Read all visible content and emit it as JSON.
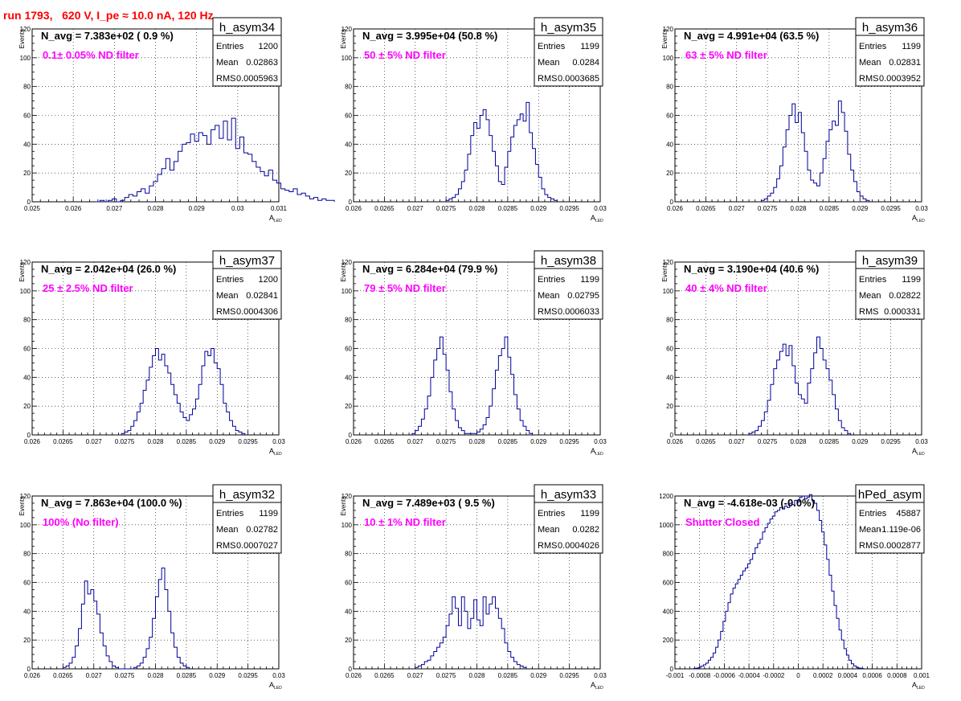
{
  "run_title": "run 1793,   620 V, I_pe ≈ 10.0 nA, 120 Hz",
  "stats_labels": {
    "entries": "Entries",
    "mean": "Mean",
    "rms": "RMS"
  },
  "colors": {
    "histogram": "#000099",
    "filter_label": "#ff00ff",
    "run_title": "#ff0000",
    "grid": "#000000"
  },
  "chart_data": [
    {
      "type": "histogram",
      "name": "h_asym34",
      "navg": "N_avg = 7.383e+02 ( 0.9 %)",
      "filter": "0.1± 0.05% ND filter",
      "entries": "1200",
      "mean": "0.02863",
      "rms": "0.0005963",
      "xlabel": "A",
      "xlabel_sub": "LED",
      "ylabel": "Events",
      "xlim": [
        0.025,
        0.031
      ],
      "ylim": [
        0,
        120
      ],
      "xticks": [
        0.025,
        0.026,
        0.027,
        0.028,
        0.029,
        0.03,
        0.031
      ],
      "xtick_labels": [
        "0.025",
        "0.026",
        "0.027",
        "0.028",
        "0.029",
        "0.03",
        "0.031"
      ],
      "yticks": [
        0,
        20,
        40,
        60,
        80,
        100,
        120
      ],
      "ytick_labels": [
        "0",
        "20",
        "40",
        "60",
        "80",
        "100",
        "120"
      ],
      "bin_start": 0.02655,
      "bin_width": 0.0001,
      "counts": [
        0,
        1,
        0,
        1,
        2,
        0,
        1,
        3,
        5,
        4,
        7,
        9,
        6,
        11,
        14,
        19,
        23,
        30,
        22,
        28,
        35,
        40,
        41,
        47,
        42,
        48,
        46,
        40,
        50,
        53,
        44,
        56,
        43,
        58,
        37,
        45,
        34,
        33,
        28,
        24,
        21,
        18,
        22,
        15,
        13,
        9,
        8,
        7,
        9,
        5,
        6,
        4,
        2,
        3,
        1,
        2,
        1,
        1
      ]
    },
    {
      "type": "histogram",
      "name": "h_asym35",
      "navg": "N_avg = 3.995e+04 (50.8 %)",
      "filter": "50 ± 5% ND filter",
      "entries": "1199",
      "mean": "0.0284",
      "rms": "0.0003685",
      "xlabel": "A",
      "xlabel_sub": "LED",
      "ylabel": "Events",
      "xlim": [
        0.026,
        0.03
      ],
      "ylim": [
        0,
        120
      ],
      "xticks": [
        0.026,
        0.0265,
        0.027,
        0.0275,
        0.028,
        0.0285,
        0.029,
        0.0295,
        0.03
      ],
      "xtick_labels": [
        "0.026",
        "0.0265",
        "0.027",
        "0.0275",
        "0.028",
        "0.0285",
        "0.029",
        "0.0295",
        "0.03"
      ],
      "yticks": [
        0,
        20,
        40,
        60,
        80,
        100,
        120
      ],
      "ytick_labels": [
        "0",
        "20",
        "40",
        "60",
        "80",
        "100",
        "120"
      ],
      "bin_start": 0.0275,
      "bin_width": 5e-05,
      "counts": [
        1,
        2,
        3,
        5,
        9,
        14,
        22,
        33,
        46,
        55,
        51,
        60,
        64,
        57,
        46,
        35,
        25,
        14,
        12,
        24,
        35,
        45,
        53,
        57,
        61,
        56,
        69,
        48,
        37,
        26,
        17,
        9,
        5,
        3,
        2,
        1
      ]
    },
    {
      "type": "histogram",
      "name": "h_asym36",
      "navg": "N_avg = 4.991e+04 (63.5 %)",
      "filter": "63 ± 5% ND filter",
      "entries": "1199",
      "mean": "0.02831",
      "rms": "0.0003952",
      "xlabel": "A",
      "xlabel_sub": "LED",
      "ylabel": "Events",
      "xlim": [
        0.026,
        0.03
      ],
      "ylim": [
        0,
        120
      ],
      "xticks": [
        0.026,
        0.0265,
        0.027,
        0.0275,
        0.028,
        0.0285,
        0.029,
        0.0295,
        0.03
      ],
      "xtick_labels": [
        "0.026",
        "0.0265",
        "0.027",
        "0.0275",
        "0.028",
        "0.0285",
        "0.029",
        "0.0295",
        "0.03"
      ],
      "yticks": [
        0,
        20,
        40,
        60,
        80,
        100,
        120
      ],
      "ytick_labels": [
        "0",
        "20",
        "40",
        "60",
        "80",
        "100",
        "120"
      ],
      "bin_start": 0.0274,
      "bin_width": 5e-05,
      "counts": [
        1,
        2,
        4,
        6,
        10,
        16,
        25,
        38,
        50,
        60,
        68,
        55,
        62,
        48,
        35,
        22,
        15,
        13,
        11,
        20,
        30,
        42,
        50,
        56,
        53,
        70,
        62,
        49,
        33,
        22,
        14,
        7,
        4,
        2,
        1
      ]
    },
    {
      "type": "histogram",
      "name": "h_asym37",
      "navg": "N_avg = 2.042e+04 (26.0 %)",
      "filter": "25 ± 2.5% ND filter",
      "entries": "1200",
      "mean": "0.02841",
      "rms": "0.0004306",
      "xlabel": "A",
      "xlabel_sub": "LED",
      "ylabel": "Events",
      "xlim": [
        0.026,
        0.03
      ],
      "ylim": [
        0,
        120
      ],
      "xticks": [
        0.026,
        0.0265,
        0.027,
        0.0275,
        0.028,
        0.0285,
        0.029,
        0.0295,
        0.03
      ],
      "xtick_labels": [
        "0.026",
        "0.0265",
        "0.027",
        "0.0275",
        "0.028",
        "0.0285",
        "0.029",
        "0.0295",
        "0.03"
      ],
      "yticks": [
        0,
        20,
        40,
        60,
        80,
        100,
        120
      ],
      "ytick_labels": [
        "0",
        "20",
        "40",
        "60",
        "80",
        "100",
        "120"
      ],
      "bin_start": 0.02745,
      "bin_width": 5e-05,
      "counts": [
        1,
        2,
        3,
        6,
        10,
        16,
        22,
        31,
        38,
        47,
        55,
        60,
        52,
        56,
        48,
        43,
        35,
        28,
        22,
        16,
        12,
        10,
        14,
        18,
        25,
        35,
        48,
        58,
        55,
        60,
        50,
        46,
        35,
        22,
        16,
        10,
        6,
        3,
        2,
        1
      ]
    },
    {
      "type": "histogram",
      "name": "h_asym38",
      "navg": "N_avg = 6.284e+04 (79.9 %)",
      "filter": "79 ± 5% ND filter",
      "entries": "1199",
      "mean": "0.02795",
      "rms": "0.0006033",
      "xlabel": "A",
      "xlabel_sub": "LED",
      "ylabel": "Events",
      "xlim": [
        0.026,
        0.03
      ],
      "ylim": [
        0,
        120
      ],
      "xticks": [
        0.026,
        0.0265,
        0.027,
        0.0275,
        0.028,
        0.0285,
        0.029,
        0.0295,
        0.03
      ],
      "xtick_labels": [
        "0.026",
        "0.0265",
        "0.027",
        "0.0275",
        "0.028",
        "0.0285",
        "0.029",
        "0.0295",
        "0.03"
      ],
      "yticks": [
        0,
        20,
        40,
        60,
        80,
        100,
        120
      ],
      "ytick_labels": [
        "0",
        "20",
        "40",
        "60",
        "80",
        "100",
        "120"
      ],
      "bin_start": 0.02695,
      "bin_width": 5e-05,
      "counts": [
        1,
        3,
        6,
        11,
        18,
        27,
        40,
        52,
        60,
        68,
        56,
        45,
        30,
        18,
        10,
        5,
        3,
        1,
        1,
        1,
        1,
        2,
        4,
        7,
        12,
        20,
        32,
        45,
        55,
        60,
        68,
        54,
        42,
        28,
        18,
        10,
        6,
        3,
        1
      ]
    },
    {
      "type": "histogram",
      "name": "h_asym39",
      "navg": "N_avg = 3.190e+04 (40.6 %)",
      "filter": "40 ± 4% ND filter",
      "entries": "1199",
      "mean": "0.02822",
      "rms": "0.000331",
      "xlabel": "A",
      "xlabel_sub": "LED",
      "ylabel": "Events",
      "xlim": [
        0.026,
        0.03
      ],
      "ylim": [
        0,
        120
      ],
      "xticks": [
        0.026,
        0.0265,
        0.027,
        0.0275,
        0.028,
        0.0285,
        0.029,
        0.0295,
        0.03
      ],
      "xtick_labels": [
        "0.026",
        "0.0265",
        "0.027",
        "0.0275",
        "0.028",
        "0.0285",
        "0.029",
        "0.0295",
        "0.03"
      ],
      "yticks": [
        0,
        20,
        40,
        60,
        80,
        100,
        120
      ],
      "ytick_labels": [
        "0",
        "20",
        "40",
        "60",
        "80",
        "100",
        "120"
      ],
      "bin_start": 0.0272,
      "bin_width": 5e-05,
      "counts": [
        1,
        2,
        3,
        6,
        10,
        16,
        24,
        35,
        46,
        52,
        58,
        63,
        55,
        62,
        48,
        36,
        28,
        25,
        22,
        36,
        46,
        57,
        68,
        60,
        52,
        46,
        38,
        28,
        18,
        10,
        5,
        3,
        1
      ]
    },
    {
      "type": "histogram",
      "name": "h_asym32",
      "navg": "N_avg = 7.863e+04 (100.0 %)",
      "filter": "100% (No filter)",
      "entries": "1199",
      "mean": "0.02782",
      "rms": "0.0007027",
      "xlabel": "A",
      "xlabel_sub": "LED",
      "ylabel": "Events",
      "xlim": [
        0.026,
        0.03
      ],
      "ylim": [
        0,
        120
      ],
      "xticks": [
        0.026,
        0.0265,
        0.027,
        0.0275,
        0.028,
        0.0285,
        0.029,
        0.0295,
        0.03
      ],
      "xtick_labels": [
        "0.026",
        "0.0265",
        "0.027",
        "0.0275",
        "0.028",
        "0.0285",
        "0.029",
        "0.0295",
        "0.03"
      ],
      "yticks": [
        0,
        20,
        40,
        60,
        80,
        100,
        120
      ],
      "ytick_labels": [
        "0",
        "20",
        "40",
        "60",
        "80",
        "100",
        "120"
      ],
      "bin_start": 0.0265,
      "bin_width": 5e-05,
      "counts": [
        1,
        2,
        4,
        8,
        16,
        28,
        45,
        61,
        52,
        55,
        47,
        38,
        25,
        16,
        9,
        5,
        2,
        1,
        0,
        0,
        0,
        0,
        0,
        1,
        2,
        4,
        8,
        14,
        22,
        35,
        50,
        62,
        70,
        55,
        40,
        25,
        15,
        8,
        4,
        2,
        1
      ]
    },
    {
      "type": "histogram",
      "name": "h_asym33",
      "navg": "N_avg = 7.489e+03 ( 9.5 %)",
      "filter": "10 ± 1% ND filter",
      "entries": "1199",
      "mean": "0.0282",
      "rms": "0.0004026",
      "xlabel": "A",
      "xlabel_sub": "LED",
      "ylabel": "Events",
      "xlim": [
        0.026,
        0.03
      ],
      "ylim": [
        0,
        120
      ],
      "xticks": [
        0.026,
        0.0265,
        0.027,
        0.0275,
        0.028,
        0.0285,
        0.029,
        0.0295,
        0.03
      ],
      "xtick_labels": [
        "0.026",
        "0.0265",
        "0.027",
        "0.0275",
        "0.028",
        "0.0285",
        "0.029",
        "0.0295",
        "0.03"
      ],
      "yticks": [
        0,
        20,
        40,
        60,
        80,
        100,
        120
      ],
      "ytick_labels": [
        "0",
        "20",
        "40",
        "60",
        "80",
        "100",
        "120"
      ],
      "bin_start": 0.027,
      "bin_width": 5e-05,
      "counts": [
        1,
        2,
        3,
        5,
        6,
        9,
        12,
        15,
        18,
        22,
        30,
        38,
        50,
        42,
        30,
        50,
        40,
        28,
        35,
        48,
        34,
        30,
        50,
        38,
        45,
        50,
        42,
        35,
        28,
        18,
        12,
        8,
        5,
        3,
        2,
        1
      ]
    },
    {
      "type": "histogram",
      "name": "hPed_asym",
      "navg": "N_avg = -4.618e-03 (-0.0%)",
      "filter": "Shutter Closed",
      "entries": "45887",
      "mean": "-1.119e-06",
      "rms": "0.0002877",
      "xlabel": "A",
      "xlabel_sub": "LED",
      "ylabel": "",
      "xlim": [
        -0.001,
        0.001
      ],
      "ylim": [
        0,
        1200
      ],
      "xticks": [
        -0.001,
        -0.0008,
        -0.0006,
        -0.0004,
        -0.0002,
        0,
        0.0002,
        0.0004,
        0.0006,
        0.0008,
        0.001
      ],
      "xtick_labels": [
        "-0.001",
        "-0.0008",
        "-0.0006",
        "-0.0004",
        "-0.0002",
        "0",
        "0.0002",
        "0.0004",
        "0.0006",
        "0.0008",
        "0.001"
      ],
      "yticks": [
        0,
        200,
        400,
        600,
        800,
        1000,
        1200
      ],
      "ytick_labels": [
        "0",
        "200",
        "400",
        "600",
        "800",
        "1000",
        "1200"
      ],
      "bin_start": -0.00085,
      "bin_width": 2e-05,
      "counts": [
        2,
        5,
        10,
        18,
        28,
        40,
        60,
        80,
        110,
        150,
        200,
        260,
        330,
        400,
        460,
        520,
        560,
        590,
        620,
        650,
        680,
        700,
        730,
        760,
        800,
        840,
        870,
        900,
        950,
        980,
        1010,
        1040,
        1060,
        1090,
        1100,
        1120,
        1110,
        1130,
        1120,
        1150,
        1140,
        1170,
        1160,
        1190,
        1200,
        1180,
        1190,
        1210,
        1170,
        1150,
        1100,
        1030,
        950,
        860,
        760,
        650,
        540,
        440,
        350,
        270,
        200,
        140,
        95,
        60,
        35,
        20,
        10,
        5,
        2
      ]
    }
  ]
}
